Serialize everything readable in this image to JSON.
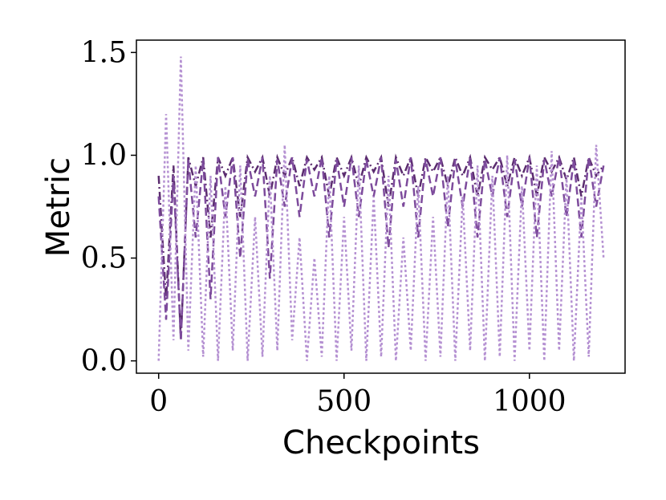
{
  "chart_data": {
    "type": "line",
    "xlabel": "Checkpoints",
    "ylabel": "Metric",
    "x": [
      0,
      20,
      40,
      60,
      80,
      100,
      120,
      140,
      160,
      180,
      200,
      220,
      240,
      260,
      280,
      300,
      320,
      340,
      360,
      380,
      400,
      420,
      440,
      460,
      480,
      500,
      520,
      540,
      560,
      580,
      600,
      620,
      640,
      660,
      680,
      700,
      720,
      740,
      760,
      780,
      800,
      820,
      840,
      860,
      880,
      900,
      920,
      940,
      960,
      980,
      1000,
      1020,
      1040,
      1060,
      1080,
      1100,
      1120,
      1140,
      1160,
      1180,
      1200
    ],
    "series": [
      {
        "color": "#5b2c6f",
        "dash": "10,4,2,4",
        "values": [
          0.9,
          0.3,
          0.95,
          0.1,
          0.99,
          0.85,
          0.99,
          0.6,
          0.99,
          0.9,
          0.99,
          0.7,
          0.99,
          0.92,
          0.99,
          0.8,
          0.99,
          0.9,
          0.99,
          0.85,
          0.99,
          0.93,
          0.99,
          0.8,
          0.99,
          0.9,
          0.99,
          0.85,
          0.99,
          0.92,
          0.99,
          0.75,
          0.99,
          0.9,
          0.99,
          0.8,
          0.99,
          0.92,
          0.99,
          0.85,
          0.99,
          0.9,
          0.99,
          0.8,
          0.99,
          0.93,
          0.99,
          0.85,
          0.99,
          0.9,
          0.99,
          0.8,
          0.99,
          0.92,
          0.99,
          0.88,
          0.99,
          0.8,
          0.99,
          0.9,
          0.95
        ]
      },
      {
        "color": "#7d4b9c",
        "dash": "10,5",
        "values": [
          0.8,
          0.2,
          0.9,
          0.1,
          0.98,
          0.6,
          0.98,
          0.3,
          0.99,
          0.7,
          0.99,
          0.5,
          0.98,
          0.8,
          0.99,
          0.4,
          0.98,
          0.75,
          0.99,
          0.7,
          0.98,
          0.8,
          0.99,
          0.6,
          0.98,
          0.75,
          0.99,
          0.7,
          0.98,
          0.8,
          0.99,
          0.55,
          0.98,
          0.75,
          0.99,
          0.6,
          0.98,
          0.8,
          0.99,
          0.65,
          0.98,
          0.75,
          0.99,
          0.6,
          0.98,
          0.8,
          0.99,
          0.7,
          0.98,
          0.75,
          0.99,
          0.6,
          0.98,
          0.8,
          0.99,
          0.7,
          0.98,
          0.6,
          0.99,
          0.75,
          0.95
        ]
      },
      {
        "color": "#b591d2",
        "dash": "3,3",
        "values": [
          0.0,
          1.2,
          0.1,
          1.48,
          0.05,
          0.95,
          0.02,
          0.9,
          0.0,
          0.85,
          0.05,
          0.95,
          0.0,
          0.7,
          0.02,
          0.9,
          0.05,
          1.05,
          0.1,
          0.6,
          0.0,
          0.5,
          0.02,
          0.9,
          0.0,
          0.7,
          0.05,
          0.95,
          0.0,
          0.8,
          0.02,
          0.9,
          0.0,
          0.6,
          0.05,
          0.85,
          0.0,
          0.7,
          0.02,
          0.9,
          0.0,
          0.8,
          0.05,
          0.95,
          0.0,
          0.9,
          0.02,
          1.0,
          0.0,
          0.85,
          0.05,
          0.95,
          0.0,
          1.02,
          0.05,
          0.9,
          0.0,
          0.8,
          0.02,
          1.05,
          0.5
        ]
      }
    ],
    "xlim": [
      -60,
      1258
    ],
    "ylim": [
      -0.06,
      1.56
    ],
    "xticks": [
      0,
      500,
      1000
    ],
    "yticks": [
      {
        "value": 0,
        "label": "0.0"
      },
      0.5,
      {
        "value": 1,
        "label": "1.0"
      },
      1.5
    ],
    "grid": false
  }
}
